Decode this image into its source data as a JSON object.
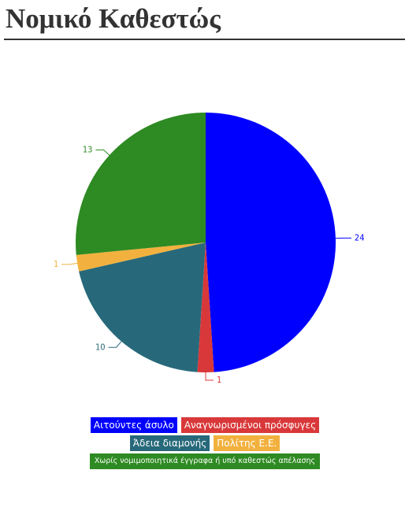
{
  "chart_data": {
    "type": "pie",
    "title": "Νομικό Καθεστώς",
    "categories": [
      "Αιτούντες άσυλο",
      "Αναγνωρισμένοι πρόσφυγες",
      "Άδεια διαμονής",
      "Πολίτης Ε.Ε.",
      "Χωρίς νομιμοποιητικά έγγραφα ή υπό καθεστώς απέλασης"
    ],
    "values": [
      24,
      1,
      10,
      1,
      13
    ],
    "colors": [
      "#0000ff",
      "#d9383a",
      "#27697a",
      "#f2b13e",
      "#2e8a22"
    ]
  }
}
